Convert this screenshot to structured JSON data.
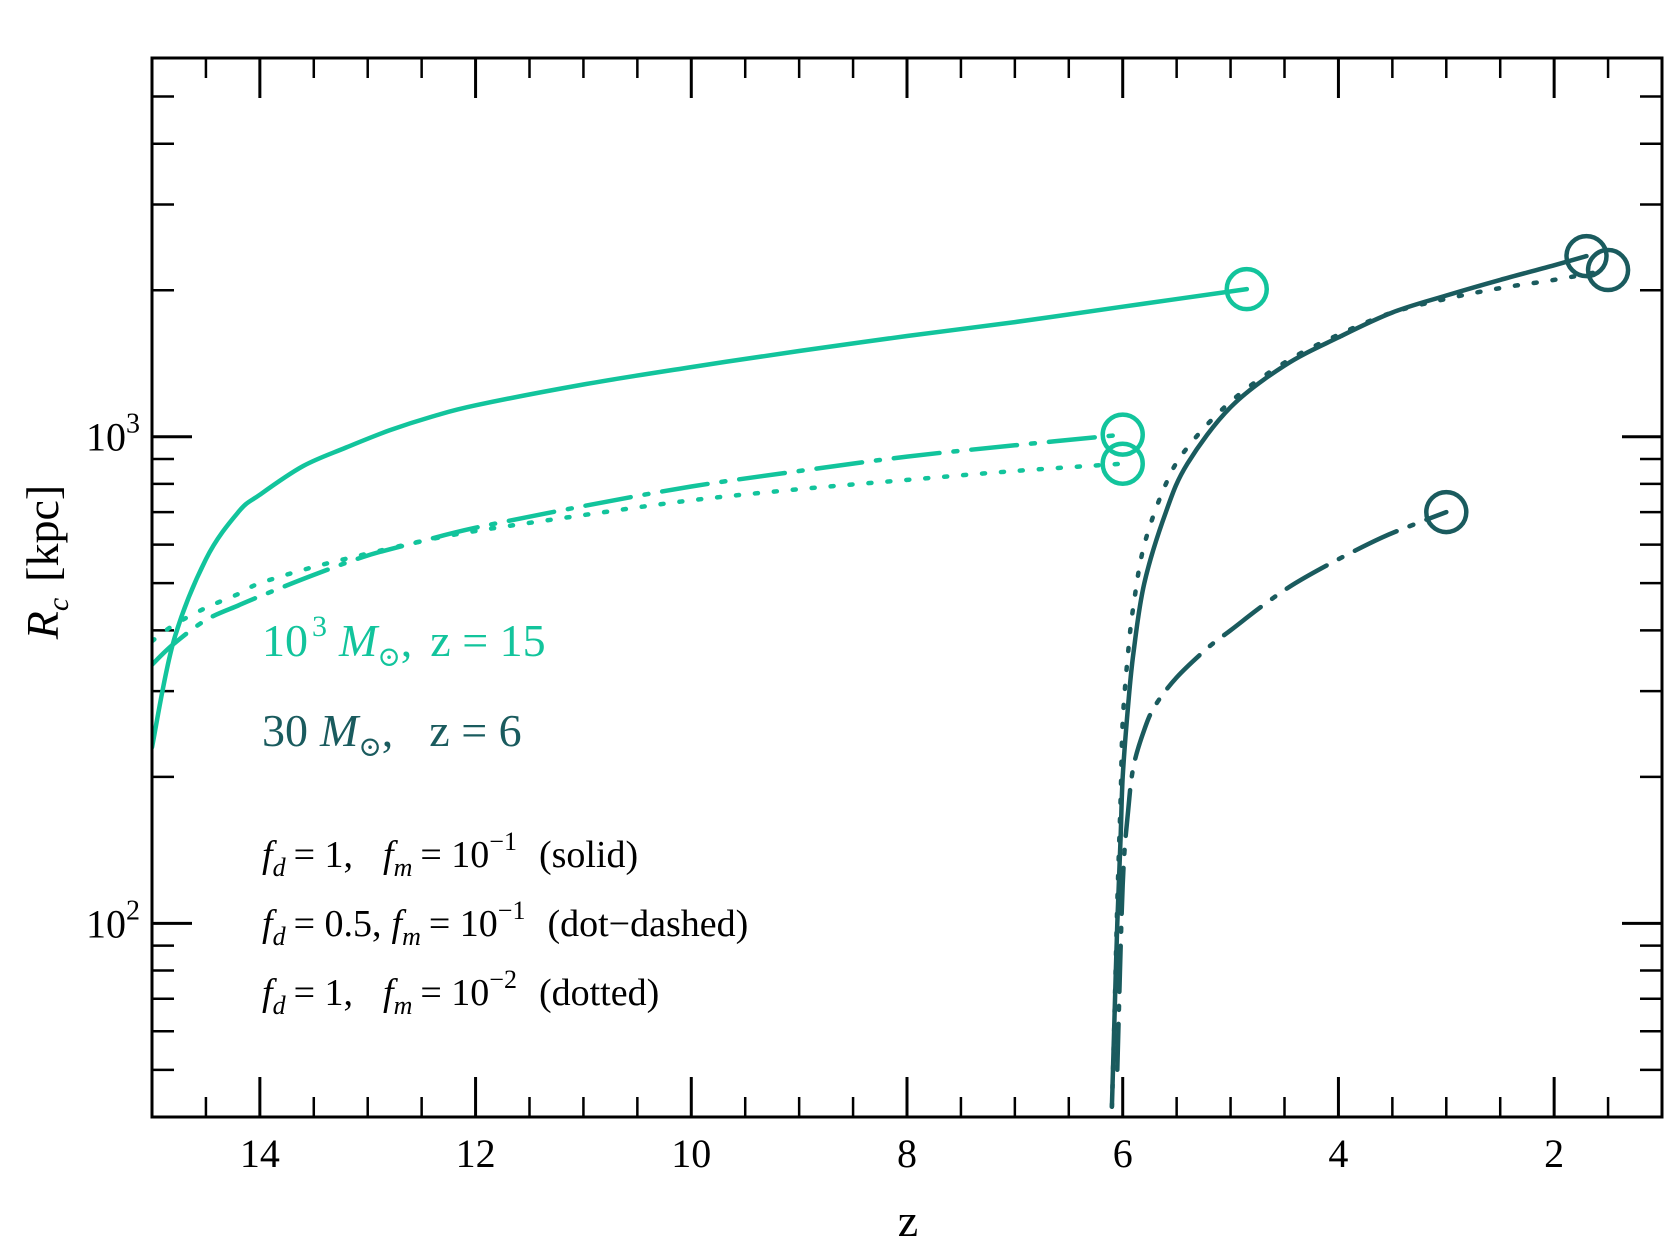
{
  "chart_data": {
    "type": "line",
    "title": "",
    "xlabel": "z",
    "ylabel_symbol": "R",
    "ylabel_subscript": "c",
    "ylabel_unit": "[kpc]",
    "xlim": [
      15,
      1
    ],
    "ylim": [
      40,
      6000
    ],
    "yscale": "log",
    "x_ticks": [
      14,
      12,
      10,
      8,
      6,
      4,
      2
    ],
    "y_ticks": [
      {
        "value": 100,
        "base": "10",
        "exp": "2"
      },
      {
        "value": 1000,
        "base": "10",
        "exp": "3"
      }
    ],
    "grid": false,
    "colors": {
      "light": "#12c49c",
      "dark": "#1a5b5e"
    },
    "series": [
      {
        "group": "light",
        "style": "solid",
        "end_marker": "circle",
        "x": [
          15.0,
          14.8,
          14.5,
          14.2,
          14.0,
          13.6,
          13.2,
          12.8,
          12.4,
          12.0,
          11.0,
          10.0,
          9.0,
          8.0,
          7.0,
          6.0,
          4.85
        ],
        "y": [
          230,
          380,
          560,
          700,
          760,
          870,
          950,
          1030,
          1100,
          1160,
          1280,
          1390,
          1500,
          1610,
          1720,
          1850,
          2010
        ]
      },
      {
        "group": "light",
        "style": "dot-dashed",
        "end_marker": "circle",
        "x": [
          15.0,
          14.8,
          14.5,
          14.2,
          14.0,
          13.5,
          13.0,
          12.5,
          12.0,
          11.0,
          10.0,
          9.0,
          8.0,
          7.0,
          6.0
        ],
        "y": [
          340,
          375,
          420,
          450,
          470,
          520,
          570,
          610,
          650,
          720,
          790,
          850,
          910,
          960,
          1010
        ]
      },
      {
        "group": "light",
        "style": "dotted",
        "end_marker": "circle",
        "x": [
          15.0,
          14.8,
          14.5,
          14.2,
          14.0,
          13.5,
          13.0,
          12.5,
          12.0,
          11.0,
          10.0,
          9.0,
          8.0,
          7.0,
          6.0
        ],
        "y": [
          380,
          410,
          445,
          475,
          500,
          540,
          575,
          610,
          640,
          690,
          740,
          780,
          815,
          850,
          880
        ]
      },
      {
        "group": "dark",
        "style": "solid",
        "end_marker": "circle",
        "x": [
          6.1,
          6.08,
          6.05,
          6.02,
          6.0,
          5.95,
          5.9,
          5.8,
          5.6,
          5.4,
          5.0,
          4.5,
          4.0,
          3.5,
          3.0,
          2.5,
          2.0,
          1.7
        ],
        "y": [
          42,
          60,
          100,
          150,
          200,
          280,
          360,
          500,
          700,
          880,
          1150,
          1400,
          1600,
          1800,
          1950,
          2100,
          2250,
          2350
        ]
      },
      {
        "group": "dark",
        "style": "dotted",
        "end_marker": "circle",
        "x": [
          6.1,
          6.08,
          6.05,
          6.02,
          6.0,
          5.95,
          5.9,
          5.8,
          5.6,
          5.4,
          5.0,
          4.5,
          4.0,
          3.5,
          3.0,
          2.5,
          2.0,
          1.5
        ],
        "y": [
          42,
          60,
          110,
          180,
          260,
          360,
          450,
          600,
          800,
          950,
          1180,
          1420,
          1620,
          1800,
          1920,
          2020,
          2100,
          2200
        ]
      },
      {
        "group": "dark",
        "style": "dot-dashed",
        "end_marker": "circle",
        "x": [
          6.05,
          6.0,
          5.95,
          5.9,
          5.8,
          5.7,
          5.5,
          5.2,
          5.0,
          4.7,
          4.4,
          4.0,
          3.6,
          3.3,
          3.0
        ],
        "y": [
          50,
          120,
          170,
          210,
          250,
          280,
          320,
          370,
          400,
          450,
          500,
          560,
          620,
          660,
          700
        ]
      }
    ],
    "annotations": {
      "light_label": {
        "base": "10",
        "exp": "3",
        "mass": "M",
        "sun": "⊙",
        "sep": ",",
        "z_text": "z = 15"
      },
      "dark_label": {
        "base": "30",
        "mass": "M",
        "sun": "⊙",
        "sep": ",",
        "z_text": "z = 6"
      },
      "legend_lines": [
        {
          "fd": "= 1,",
          "fm_eq": "= 10",
          "fm_exp": "−1",
          "desc": "(solid)"
        },
        {
          "fd": "= 0.5,",
          "fm_eq": "= 10",
          "fm_exp": "−1",
          "desc": "(dot−dashed)"
        },
        {
          "fd": "= 1,",
          "fm_eq": "= 10",
          "fm_exp": "−2",
          "desc": "(dotted)"
        }
      ],
      "f_symbol": "f",
      "sub_d": "d",
      "sub_m": "m"
    }
  }
}
